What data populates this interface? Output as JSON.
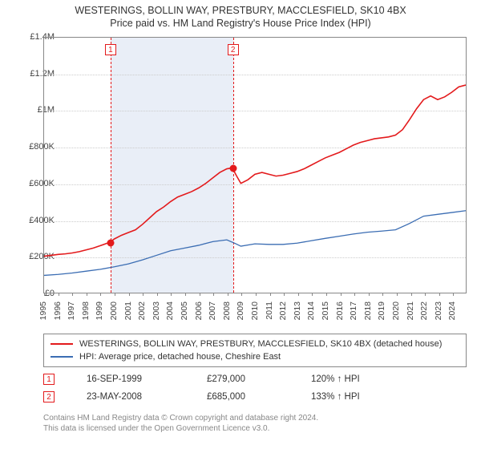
{
  "title": {
    "main": "WESTERINGS, BOLLIN WAY, PRESTBURY, MACCLESFIELD, SK10 4BX",
    "sub": "Price paid vs. HM Land Registry's House Price Index (HPI)",
    "fontsize": 12.5,
    "color": "#333333"
  },
  "chart": {
    "type": "line",
    "background_color": "#ffffff",
    "plot_border_color": "#888888",
    "grid_color": "#cccccc",
    "x": {
      "min": 1995,
      "max": 2025,
      "ticks": [
        1995,
        1996,
        1997,
        1998,
        1999,
        2000,
        2001,
        2002,
        2003,
        2004,
        2005,
        2006,
        2007,
        2008,
        2009,
        2010,
        2011,
        2012,
        2013,
        2014,
        2015,
        2016,
        2017,
        2018,
        2019,
        2020,
        2021,
        2022,
        2023,
        2024
      ],
      "label_fontsize": 10.5
    },
    "y": {
      "min": 0,
      "max": 1400000,
      "tick_step": 200000,
      "tick_labels": [
        "£0",
        "£200K",
        "£400K",
        "£600K",
        "£800K",
        "£1M",
        "£1.2M",
        "£1.4M"
      ],
      "label_fontsize": 11
    },
    "shaded_band": {
      "start": 1999.71,
      "end": 2008.39,
      "color": "#e9eef7"
    },
    "markers": [
      {
        "n": "1",
        "year": 1999.71,
        "dash_color": "#e31a1c"
      },
      {
        "n": "2",
        "year": 2008.39,
        "dash_color": "#e31a1c"
      }
    ],
    "sale_points": [
      {
        "year": 1999.71,
        "price": 279000
      },
      {
        "year": 2008.39,
        "price": 685000
      }
    ],
    "series": [
      {
        "name": "WESTERINGS, BOLLIN WAY, PRESTBURY, MACCLESFIELD, SK10 4BX (detached house)",
        "color": "#e31a1c",
        "line_width": 1.6,
        "points": [
          [
            1995.0,
            200000
          ],
          [
            1995.5,
            205000
          ],
          [
            1996.0,
            210000
          ],
          [
            1996.5,
            213000
          ],
          [
            1997.0,
            218000
          ],
          [
            1997.5,
            225000
          ],
          [
            1998.0,
            235000
          ],
          [
            1998.5,
            245000
          ],
          [
            1999.0,
            258000
          ],
          [
            1999.5,
            272000
          ],
          [
            1999.71,
            279000
          ],
          [
            2000.0,
            295000
          ],
          [
            2000.5,
            315000
          ],
          [
            2001.0,
            330000
          ],
          [
            2001.5,
            345000
          ],
          [
            2002.0,
            375000
          ],
          [
            2002.5,
            410000
          ],
          [
            2003.0,
            445000
          ],
          [
            2003.5,
            470000
          ],
          [
            2004.0,
            500000
          ],
          [
            2004.5,
            525000
          ],
          [
            2005.0,
            540000
          ],
          [
            2005.5,
            555000
          ],
          [
            2006.0,
            575000
          ],
          [
            2006.5,
            600000
          ],
          [
            2007.0,
            630000
          ],
          [
            2007.5,
            660000
          ],
          [
            2008.0,
            680000
          ],
          [
            2008.39,
            685000
          ],
          [
            2008.7,
            640000
          ],
          [
            2009.0,
            600000
          ],
          [
            2009.5,
            620000
          ],
          [
            2010.0,
            650000
          ],
          [
            2010.5,
            660000
          ],
          [
            2011.0,
            650000
          ],
          [
            2011.5,
            640000
          ],
          [
            2012.0,
            645000
          ],
          [
            2012.5,
            655000
          ],
          [
            2013.0,
            665000
          ],
          [
            2013.5,
            680000
          ],
          [
            2014.0,
            700000
          ],
          [
            2014.5,
            720000
          ],
          [
            2015.0,
            740000
          ],
          [
            2015.5,
            755000
          ],
          [
            2016.0,
            770000
          ],
          [
            2016.5,
            790000
          ],
          [
            2017.0,
            810000
          ],
          [
            2017.5,
            825000
          ],
          [
            2018.0,
            835000
          ],
          [
            2018.5,
            845000
          ],
          [
            2019.0,
            850000
          ],
          [
            2019.5,
            855000
          ],
          [
            2020.0,
            865000
          ],
          [
            2020.5,
            895000
          ],
          [
            2021.0,
            950000
          ],
          [
            2021.5,
            1010000
          ],
          [
            2022.0,
            1060000
          ],
          [
            2022.5,
            1080000
          ],
          [
            2023.0,
            1060000
          ],
          [
            2023.5,
            1075000
          ],
          [
            2024.0,
            1100000
          ],
          [
            2024.5,
            1130000
          ],
          [
            2025.0,
            1140000
          ]
        ]
      },
      {
        "name": "HPI: Average price, detached house, Cheshire East",
        "color": "#3b6db3",
        "line_width": 1.3,
        "points": [
          [
            1995.0,
            95000
          ],
          [
            1996.0,
            100000
          ],
          [
            1997.0,
            108000
          ],
          [
            1998.0,
            118000
          ],
          [
            1999.0,
            128000
          ],
          [
            2000.0,
            142000
          ],
          [
            2001.0,
            158000
          ],
          [
            2002.0,
            180000
          ],
          [
            2003.0,
            205000
          ],
          [
            2004.0,
            230000
          ],
          [
            2005.0,
            245000
          ],
          [
            2006.0,
            260000
          ],
          [
            2007.0,
            280000
          ],
          [
            2008.0,
            290000
          ],
          [
            2008.6,
            270000
          ],
          [
            2009.0,
            255000
          ],
          [
            2010.0,
            268000
          ],
          [
            2011.0,
            265000
          ],
          [
            2012.0,
            265000
          ],
          [
            2013.0,
            272000
          ],
          [
            2014.0,
            285000
          ],
          [
            2015.0,
            298000
          ],
          [
            2016.0,
            310000
          ],
          [
            2017.0,
            322000
          ],
          [
            2018.0,
            332000
          ],
          [
            2019.0,
            338000
          ],
          [
            2020.0,
            345000
          ],
          [
            2021.0,
            380000
          ],
          [
            2022.0,
            420000
          ],
          [
            2023.0,
            430000
          ],
          [
            2024.0,
            440000
          ],
          [
            2025.0,
            450000
          ]
        ]
      }
    ]
  },
  "legend": {
    "border_color": "#888888",
    "items": [
      {
        "color": "#e31a1c",
        "label": "WESTERINGS, BOLLIN WAY, PRESTBURY, MACCLESFIELD, SK10 4BX (detached house)"
      },
      {
        "color": "#3b6db3",
        "label": "HPI: Average price, detached house, Cheshire East"
      }
    ]
  },
  "sales": [
    {
      "n": "1",
      "date": "16-SEP-1999",
      "price": "£279,000",
      "pct": "120% ↑ HPI"
    },
    {
      "n": "2",
      "date": "23-MAY-2008",
      "price": "£685,000",
      "pct": "133% ↑ HPI"
    }
  ],
  "footer": {
    "line1": "Contains HM Land Registry data © Crown copyright and database right 2024.",
    "line2": "This data is licensed under the Open Government Licence v3.0.",
    "color": "#888888",
    "fontsize": 10
  }
}
